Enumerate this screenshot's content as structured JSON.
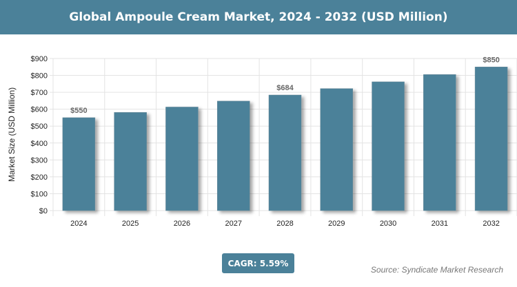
{
  "header": {
    "title": "Global Ampoule Cream Market, 2024 - 2032 (USD Million)"
  },
  "chart_data": {
    "type": "bar",
    "title": "Global Ampoule Cream Market, 2024 - 2032 (USD Million)",
    "xlabel": "",
    "ylabel": "Market Size (USD Million)",
    "categories": [
      "2024",
      "2025",
      "2026",
      "2027",
      "2028",
      "2029",
      "2030",
      "2031",
      "2032"
    ],
    "values": [
      550,
      581,
      613,
      648,
      684,
      722,
      762,
      805,
      850
    ],
    "data_labels": {
      "0": "$550",
      "4": "$684",
      "8": "$850"
    },
    "ylim": [
      0,
      900
    ],
    "yticks": [
      "$0",
      "$100",
      "$200",
      "$300",
      "$400",
      "$500",
      "$600",
      "$700",
      "$800",
      "$900"
    ],
    "grid": true,
    "bar_color": "#4b8199"
  },
  "footer": {
    "cagr": "CAGR: 5.59%",
    "source": "Source: Syndicate Market Research"
  }
}
